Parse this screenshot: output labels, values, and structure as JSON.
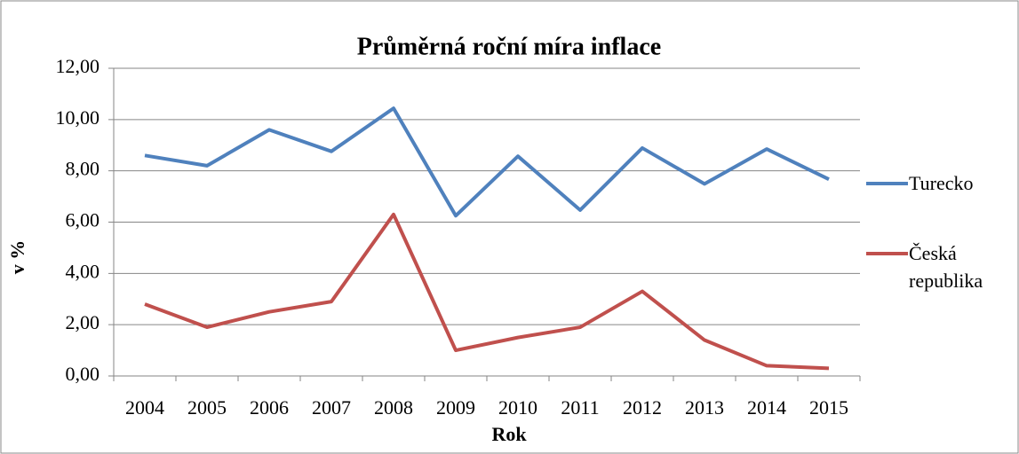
{
  "chart_data": {
    "type": "line",
    "title": "Průměrná roční míra inflace",
    "xlabel": "Rok",
    "ylabel": "v %",
    "categories": [
      "2004",
      "2005",
      "2006",
      "2007",
      "2008",
      "2009",
      "2010",
      "2011",
      "2012",
      "2013",
      "2014",
      "2015"
    ],
    "series": [
      {
        "name": "Turecko",
        "color": "#4f81bd",
        "values": [
          8.6,
          8.2,
          9.6,
          8.76,
          10.44,
          6.25,
          8.57,
          6.47,
          8.89,
          7.49,
          8.85,
          7.67
        ]
      },
      {
        "name": "Česká republika",
        "color": "#c0504d",
        "values": [
          2.8,
          1.9,
          2.5,
          2.9,
          6.3,
          1.0,
          1.5,
          1.9,
          3.3,
          1.4,
          0.4,
          0.3
        ]
      }
    ],
    "ylim": [
      0,
      12
    ],
    "yticks": [
      {
        "value": 0,
        "label": "0,00"
      },
      {
        "value": 2,
        "label": "2,00"
      },
      {
        "value": 4,
        "label": "4,00"
      },
      {
        "value": 6,
        "label": "6,00"
      },
      {
        "value": 8,
        "label": "8,00"
      },
      {
        "value": 10,
        "label": "10,00"
      },
      {
        "value": 12,
        "label": "12,00"
      }
    ],
    "grid": true,
    "legend": "right"
  }
}
